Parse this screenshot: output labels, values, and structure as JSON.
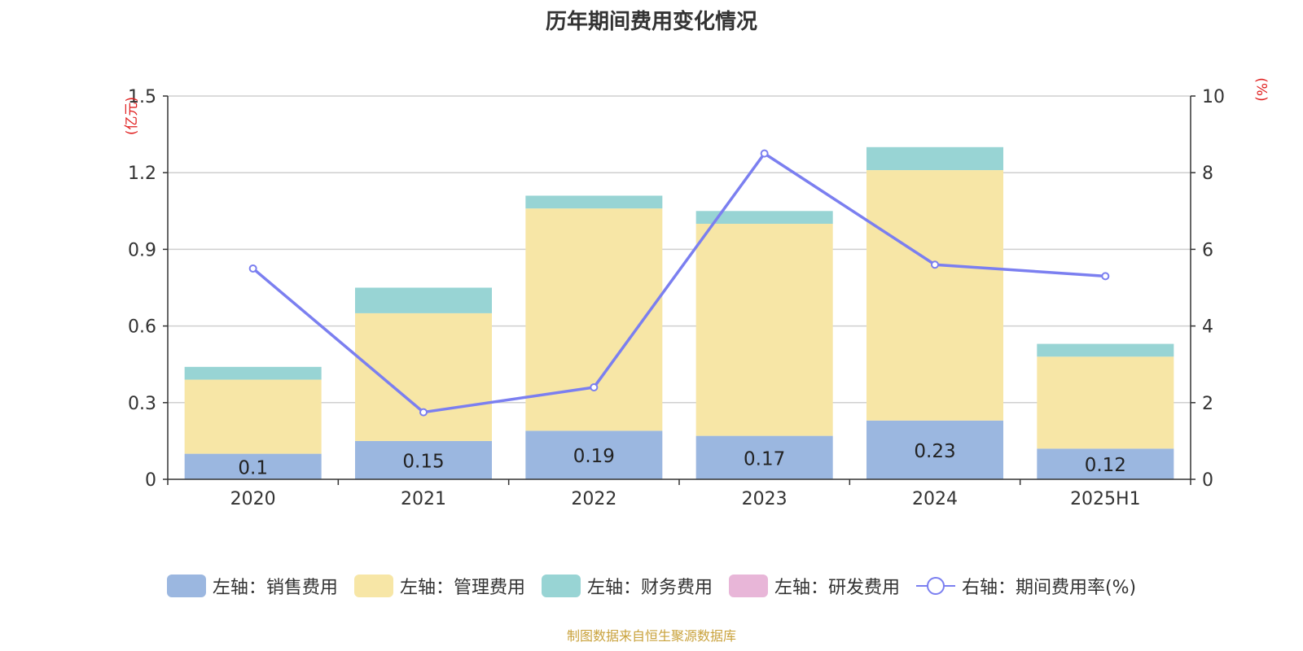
{
  "title": "历年期间费用变化情况",
  "left_unit": "(亿元)",
  "right_unit": "(%)",
  "source_note": "制图数据来自恒生聚源数据库",
  "colors": {
    "sales": "#9bb7e0",
    "admin": "#f7e6a6",
    "finance": "#98d4d4",
    "rnd": "#e8b6d8",
    "rate": "#7b7ff0"
  },
  "chart_data": {
    "type": "bar",
    "stacked": true,
    "categories": [
      "2020",
      "2021",
      "2022",
      "2023",
      "2024",
      "2025H1"
    ],
    "series": [
      {
        "name": "左轴：销售费用",
        "axis": "left",
        "color": "#9bb7e0",
        "values": [
          0.1,
          0.15,
          0.19,
          0.17,
          0.23,
          0.12
        ],
        "labels": [
          "0.1",
          "0.15",
          "0.19",
          "0.17",
          "0.23",
          "0.12"
        ]
      },
      {
        "name": "左轴：管理费用",
        "axis": "left",
        "color": "#f7e6a6",
        "values": [
          0.29,
          0.5,
          0.87,
          0.83,
          0.98,
          0.36
        ]
      },
      {
        "name": "左轴：财务费用",
        "axis": "left",
        "color": "#98d4d4",
        "values": [
          0.05,
          0.1,
          0.05,
          0.05,
          0.09,
          0.05
        ]
      },
      {
        "name": "左轴：研发费用",
        "axis": "left",
        "color": "#e8b6d8",
        "values": [
          0,
          0,
          0,
          0,
          0,
          0
        ]
      },
      {
        "name": "右轴：期间费用率(%)",
        "axis": "right",
        "type": "line",
        "color": "#7b7ff0",
        "values": [
          5.5,
          1.75,
          2.4,
          8.5,
          5.6,
          5.3
        ]
      }
    ],
    "left_axis": {
      "min": 0,
      "max": 1.5,
      "ticks": [
        "0",
        "0.3",
        "0.6",
        "0.9",
        "1.2",
        "1.5"
      ],
      "tick_values": [
        0,
        0.3,
        0.6,
        0.9,
        1.2,
        1.5
      ]
    },
    "right_axis": {
      "min": 0,
      "max": 10,
      "ticks": [
        "0",
        "2",
        "4",
        "6",
        "8",
        "10"
      ],
      "tick_values": [
        0,
        2,
        4,
        6,
        8,
        10
      ]
    },
    "grid": true,
    "legend_position": "bottom"
  }
}
